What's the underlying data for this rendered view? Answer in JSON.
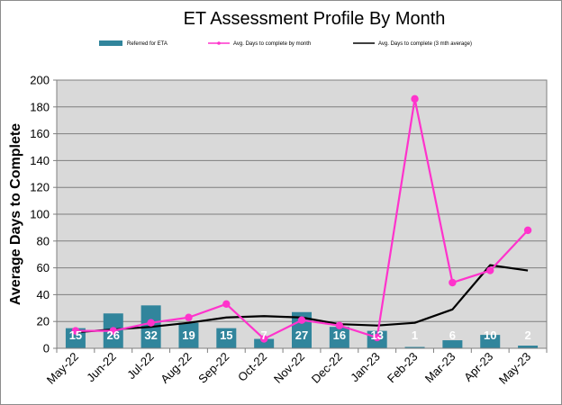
{
  "chart_data": {
    "type": "bar",
    "title": "ET Assessment Profile By Month",
    "ylabel": "Average Days to Complete",
    "xlabel": "",
    "ylim": [
      0,
      200
    ],
    "yticks": [
      0,
      20,
      40,
      60,
      80,
      100,
      120,
      140,
      160,
      180,
      200
    ],
    "grid": true,
    "legend_position": "top",
    "categories": [
      "May-22",
      "Jun-22",
      "Jul-22",
      "Aug-22",
      "Sep-22",
      "Oct-22",
      "Nov-22",
      "Dec-22",
      "Jan-23",
      "Feb-23",
      "Mar-23",
      "Apr-23",
      "May-23"
    ],
    "series": [
      {
        "name": "Referred for ETA",
        "type": "bar",
        "color": "#31859c",
        "values": [
          15,
          26,
          32,
          19,
          15,
          7,
          27,
          16,
          13,
          1,
          6,
          10,
          2
        ]
      },
      {
        "name": "Avg. Days to complete by month",
        "type": "line",
        "color": "#ff33cc",
        "values": [
          13,
          13,
          19,
          23,
          33,
          7,
          21,
          17,
          8,
          186,
          49,
          58,
          88
        ]
      },
      {
        "name": "Avg. Days to complete (3 mth average)",
        "type": "line",
        "color": "#000000",
        "values": [
          12,
          14,
          16,
          19,
          23,
          24,
          23,
          18,
          17,
          19,
          29,
          62,
          58
        ]
      }
    ]
  }
}
